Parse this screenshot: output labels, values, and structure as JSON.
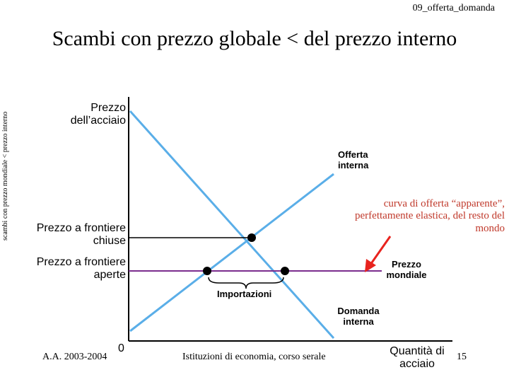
{
  "header": {
    "slide_code": "09_offerta_domanda"
  },
  "title": "Scambi con prezzo globale < del prezzo interno",
  "side_label": "scambi con prezzo mondiale < prezzo interno",
  "axes": {
    "y_label": "Prezzo dell’acciaio",
    "x_label": "Quantità di acciaio",
    "origin": "0"
  },
  "curves": {
    "supply_label": "Offerta interna",
    "demand_label": "Domanda interna",
    "world_price_label": "Prezzo mondiale"
  },
  "price_levels": {
    "closed": "Prezzo a frontiere chiuse",
    "open": "Prezzo a frontiere aperte"
  },
  "annotations": {
    "imports": "Importazioni",
    "world_supply_note": "curva di offerta “apparente”, perfettamente elastica, del resto del mondo"
  },
  "footer": {
    "year": "A.A. 2003-2004",
    "course": "Istituzioni di economia, corso serale",
    "page": "15"
  },
  "colors": {
    "curves": "#5aaee8",
    "world_price_line": "#7b2d8e",
    "arrow": "#e8231e",
    "note_text": "#c0392b"
  }
}
